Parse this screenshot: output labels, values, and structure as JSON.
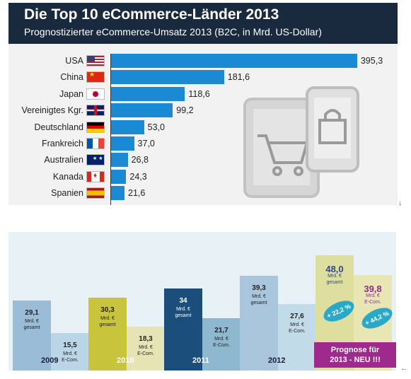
{
  "top_chart": {
    "title": "Die Top 10 eCommerce-Länder 2013",
    "subtitle": "Prognostizierter eCommerce-Umsatz 2013 (B2C, in Mrd. US-Dollar)",
    "bar_color": "#1a8ad4",
    "header_color": "#1a2a3e",
    "flags": [
      "usa-flag",
      "china-flag",
      "japan-flag",
      "uk-flag",
      "germany-flag",
      "france-flag",
      "australia-flag",
      "canada-flag",
      "spain-flag"
    ]
  },
  "bottom_chart": {
    "forecast_label_line1": "Prognose für",
    "forecast_label_line2": "2013 - NEU !!!",
    "growth_total": "+ 22,2 %",
    "growth_ecom": "+ 44,2 %",
    "label_mrd": "Mrd. €",
    "label_gesamt": "gesamt",
    "label_ecom": "E-Com."
  },
  "marker_glyph": "↓",
  "chart_data": [
    {
      "type": "bar",
      "orientation": "horizontal",
      "title": "Die Top 10 eCommerce-Länder 2013",
      "subtitle": "Prognostizierter eCommerce-Umsatz 2013 (B2C, in Mrd. US-Dollar)",
      "categories": [
        "USA",
        "China",
        "Japan",
        "Vereinigtes Kgr.",
        "Deutschland",
        "Frankreich",
        "Australien",
        "Kanada",
        "Spanien"
      ],
      "values": [
        395.3,
        181.6,
        118.6,
        99.2,
        53.0,
        37.0,
        26.8,
        24.3,
        21.6
      ],
      "value_labels": [
        "395,3",
        "181,6",
        "118,6",
        "99,2",
        "53,0",
        "37,0",
        "26,8",
        "24,3",
        "21,6"
      ],
      "xlim": [
        0,
        400
      ],
      "grid": false
    },
    {
      "type": "bar",
      "categories": [
        "2009",
        "2010",
        "2011",
        "2012",
        "2013"
      ],
      "series": [
        {
          "name": "gesamt",
          "values": [
            29.1,
            30.3,
            34,
            39.3,
            48.0
          ],
          "value_labels": [
            "29,1",
            "30,3",
            "34",
            "39,3",
            "48,0"
          ]
        },
        {
          "name": "E-Com.",
          "values": [
            15.5,
            18.3,
            21.7,
            27.6,
            39.8
          ],
          "value_labels": [
            "15,5",
            "18,3",
            "21,7",
            "27,6",
            "39,8"
          ]
        }
      ],
      "unit": "Mrd. €",
      "ylim": [
        0,
        52
      ],
      "colors": {
        "gesamt": [
          "#9bbcd6",
          "#c8c43c",
          "#1c4e7c",
          "#a9c6dd",
          "#dede9e"
        ],
        "ecom": [
          "#b9d5e6",
          "#e6e3b5",
          "#8eb8cf",
          "#c2dbe8",
          "#e8e6b3"
        ]
      },
      "grid": false
    }
  ]
}
